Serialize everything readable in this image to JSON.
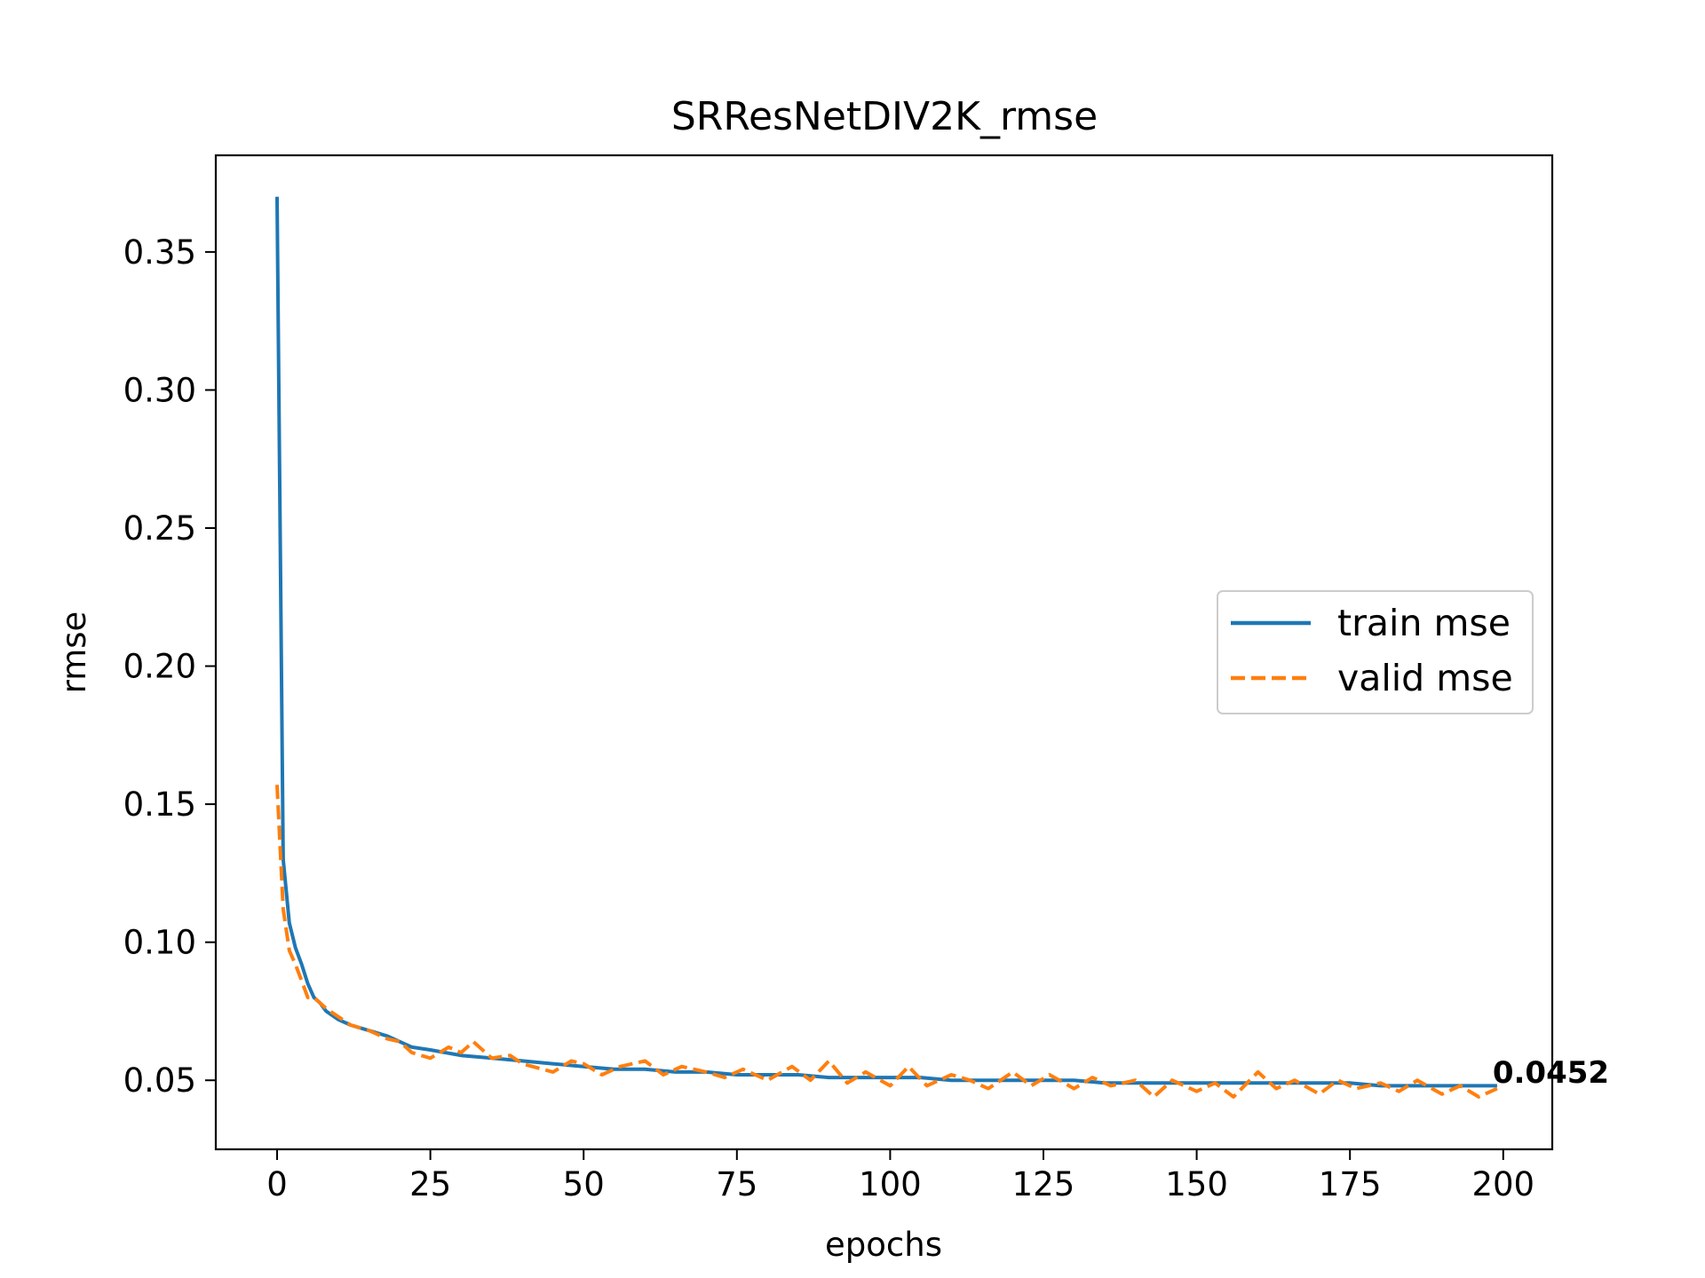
{
  "chart_data": {
    "type": "line",
    "title": "SRResNetDIV2K_rmse",
    "xlabel": "epochs",
    "ylabel": "rmse",
    "xlim": [
      -10,
      208
    ],
    "ylim": [
      0.025,
      0.385
    ],
    "x_ticks": [
      0,
      25,
      50,
      75,
      100,
      125,
      150,
      175,
      200
    ],
    "x_tick_labels": [
      "0",
      "25",
      "50",
      "75",
      "100",
      "125",
      "150",
      "175",
      "200"
    ],
    "y_ticks": [
      0.05,
      0.1,
      0.15,
      0.2,
      0.25,
      0.3,
      0.35
    ],
    "y_tick_labels": [
      "0.05",
      "0.10",
      "0.15",
      "0.20",
      "0.25",
      "0.30",
      "0.35"
    ],
    "grid": false,
    "legend": {
      "position": "center-right",
      "entries": [
        "train mse",
        "valid mse"
      ]
    },
    "annotation": {
      "text": "0.0452",
      "x": 199,
      "y": 0.0452
    },
    "series": [
      {
        "name": "train mse",
        "color": "#1f77b4",
        "style": "solid",
        "x": [
          0,
          1,
          2,
          3,
          4,
          5,
          6,
          7,
          8,
          10,
          12,
          15,
          18,
          20,
          22,
          25,
          30,
          35,
          40,
          45,
          50,
          55,
          60,
          65,
          70,
          75,
          80,
          85,
          90,
          95,
          100,
          105,
          110,
          115,
          120,
          125,
          130,
          135,
          140,
          145,
          150,
          155,
          160,
          165,
          170,
          175,
          180,
          185,
          190,
          195,
          199
        ],
        "y": [
          0.37,
          0.13,
          0.107,
          0.098,
          0.092,
          0.085,
          0.08,
          0.078,
          0.075,
          0.072,
          0.07,
          0.068,
          0.066,
          0.064,
          0.062,
          0.061,
          0.059,
          0.058,
          0.057,
          0.056,
          0.055,
          0.054,
          0.054,
          0.053,
          0.053,
          0.052,
          0.052,
          0.052,
          0.051,
          0.051,
          0.051,
          0.051,
          0.05,
          0.05,
          0.05,
          0.05,
          0.05,
          0.049,
          0.049,
          0.049,
          0.049,
          0.049,
          0.049,
          0.049,
          0.049,
          0.049,
          0.048,
          0.048,
          0.048,
          0.048,
          0.048
        ]
      },
      {
        "name": "valid mse",
        "color": "#ff7f0e",
        "style": "dashed",
        "x": [
          0,
          1,
          2,
          3,
          4,
          5,
          6,
          7,
          8,
          10,
          12,
          15,
          18,
          20,
          22,
          25,
          28,
          30,
          32,
          35,
          38,
          40,
          45,
          48,
          50,
          53,
          56,
          60,
          63,
          66,
          70,
          73,
          76,
          80,
          84,
          87,
          90,
          93,
          96,
          100,
          103,
          106,
          110,
          113,
          116,
          120,
          123,
          126,
          130,
          133,
          136,
          140,
          143,
          146,
          150,
          153,
          156,
          160,
          163,
          166,
          170,
          173,
          176,
          180,
          183,
          186,
          190,
          193,
          196,
          199
        ],
        "y": [
          0.157,
          0.112,
          0.097,
          0.092,
          0.086,
          0.08,
          0.08,
          0.078,
          0.076,
          0.073,
          0.07,
          0.068,
          0.065,
          0.064,
          0.06,
          0.058,
          0.062,
          0.06,
          0.064,
          0.058,
          0.059,
          0.056,
          0.053,
          0.057,
          0.056,
          0.052,
          0.055,
          0.057,
          0.052,
          0.055,
          0.053,
          0.051,
          0.054,
          0.05,
          0.055,
          0.05,
          0.057,
          0.049,
          0.053,
          0.048,
          0.055,
          0.048,
          0.052,
          0.05,
          0.047,
          0.053,
          0.048,
          0.052,
          0.047,
          0.051,
          0.048,
          0.05,
          0.044,
          0.05,
          0.046,
          0.049,
          0.044,
          0.053,
          0.047,
          0.05,
          0.045,
          0.05,
          0.047,
          0.049,
          0.046,
          0.05,
          0.045,
          0.048,
          0.044,
          0.047
        ]
      }
    ]
  }
}
